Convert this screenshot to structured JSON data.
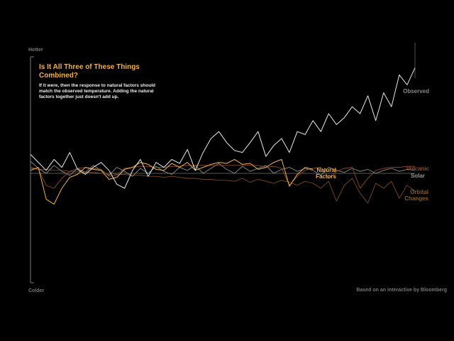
{
  "chart_data": {
    "type": "line",
    "title": "Is It All Three of These Things Combined?",
    "subtitle": "If it were, then the response to natural factors should match the observed temperature. Adding the natural factors together just doesn't add up.",
    "y_top_label": "Hotter",
    "y_bottom_label": "Colder",
    "source": "Based on an interactive by Bloomberg",
    "ylim": [
      -1.1,
      1.2
    ],
    "baseline": 0,
    "series": [
      {
        "name": "Observed",
        "color": "#e8e8e8",
        "values": [
          0.19,
          0.11,
          0.03,
          0.14,
          0.06,
          0.21,
          0.04,
          -0.01,
          0.06,
          0.11,
          0.03,
          -0.11,
          -0.15,
          0.03,
          0.14,
          -0.03,
          0.11,
          0.06,
          0.14,
          0.1,
          0.24,
          0.03,
          0.21,
          0.35,
          0.42,
          0.31,
          0.23,
          0.21,
          0.31,
          0.42,
          0.17,
          0.28,
          0.35,
          0.21,
          0.42,
          0.39,
          0.53,
          0.42,
          0.6,
          0.49,
          0.56,
          0.67,
          0.6,
          0.78,
          0.53,
          0.81,
          0.67,
          0.99,
          0.89,
          1.06
        ]
      },
      {
        "name": "Natural Factors",
        "color": "#f0b050",
        "values": [
          0.03,
          0.06,
          -0.26,
          -0.31,
          -0.15,
          -0.04,
          -0.01,
          0.06,
          0.04,
          0.03,
          -0.06,
          -0.04,
          0.04,
          0.06,
          0.11,
          0.09,
          0.04,
          0.03,
          0.1,
          0.06,
          0.11,
          0.03,
          0.06,
          0.09,
          0.11,
          0.1,
          0.14,
          0.09,
          0.1,
          0.04,
          0.06,
          0.11,
          0.14,
          -0.13,
          -0.01,
          0.06,
          0.04,
          null,
          null,
          null,
          null,
          null,
          null,
          null,
          null,
          null,
          null,
          null,
          null,
          null
        ]
      },
      {
        "name": "Volcanic",
        "color": "#8e4a2c",
        "values": [
          0.06,
          0.04,
          -0.12,
          -0.15,
          -0.05,
          0.02,
          0.05,
          0.06,
          0.05,
          0.04,
          -0.03,
          -0.02,
          0.05,
          0.06,
          0.07,
          0.07,
          0.06,
          0.06,
          0.07,
          0.07,
          0.08,
          0.08,
          0.08,
          0.08,
          0.08,
          0.08,
          0.08,
          0.08,
          0.08,
          0.08,
          0.06,
          0.07,
          0.05,
          -0.12,
          -0.03,
          0.03,
          0.05,
          0.06,
          -0.05,
          0.02,
          0.05,
          0.06,
          -0.15,
          -0.05,
          0.03,
          0.05,
          0.06,
          0.06,
          0.07,
          0.07
        ]
      },
      {
        "name": "Solar",
        "color": "#8c8c8c",
        "values": [
          0.12,
          0.05,
          0.0,
          0.08,
          0.02,
          -0.02,
          0.05,
          0.01,
          0.08,
          0.03,
          -0.02,
          0.06,
          0.02,
          -0.03,
          0.05,
          0.0,
          0.07,
          0.02,
          -0.01,
          0.06,
          0.03,
          0.08,
          0.0,
          0.05,
          0.1,
          0.04,
          0.0,
          0.07,
          0.02,
          0.05,
          0.08,
          0.0,
          0.04,
          0.06,
          0.02,
          0.05,
          0.03,
          -0.02,
          0.06,
          0.03,
          0.01,
          0.05,
          0.02,
          0.04,
          0.0,
          0.03,
          0.05,
          0.02,
          0.04,
          0.03
        ]
      },
      {
        "name": "Orbital Changes",
        "color": "#7a4a22",
        "values": [
          0.05,
          0.04,
          0.04,
          0.03,
          0.03,
          0.02,
          0.02,
          0.01,
          0.01,
          0.0,
          0.0,
          -0.01,
          -0.01,
          -0.02,
          -0.02,
          -0.03,
          -0.03,
          -0.04,
          -0.03,
          -0.04,
          -0.05,
          -0.05,
          -0.06,
          -0.06,
          -0.07,
          -0.07,
          -0.08,
          -0.05,
          -0.09,
          -0.06,
          -0.08,
          -0.1,
          -0.07,
          -0.09,
          -0.12,
          -0.08,
          -0.1,
          -0.15,
          -0.08,
          -0.28,
          -0.12,
          -0.05,
          -0.2,
          -0.3,
          -0.1,
          -0.15,
          -0.08,
          -0.25,
          -0.12,
          -0.18
        ]
      }
    ]
  }
}
